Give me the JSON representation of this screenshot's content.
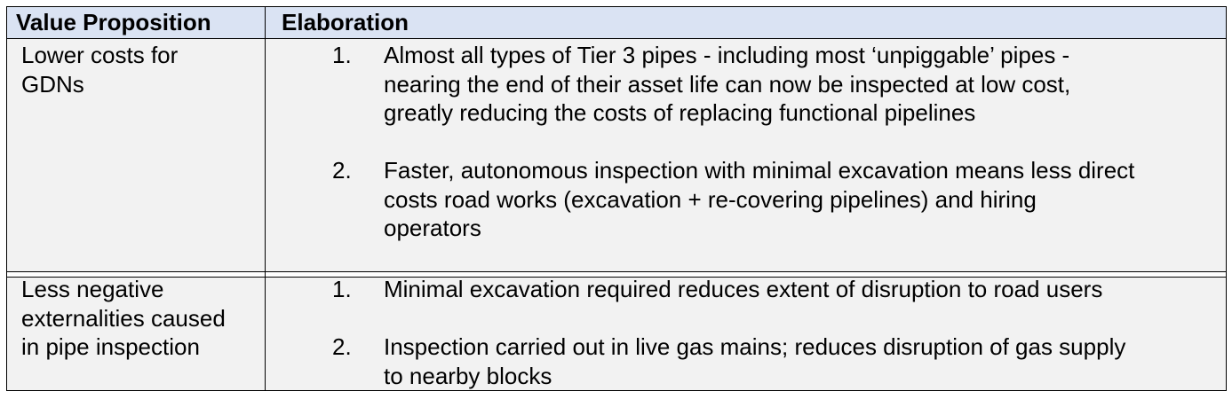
{
  "header": {
    "col1": "Value Proposition",
    "col2": "Elaboration"
  },
  "rows": [
    {
      "value_proposition": [
        "Lower costs for",
        "GDNs"
      ],
      "items": [
        {
          "number": "1.",
          "lines": [
            "Almost all types of Tier 3 pipes - including most ‘unpiggable’ pipes -",
            "nearing the end of their asset life can now be inspected at low cost,",
            "greatly reducing the costs of replacing functional pipelines"
          ]
        },
        {
          "number": "2.",
          "lines": [
            "Faster, autonomous inspection with minimal excavation means less direct",
            "costs road works (excavation + re-covering pipelines) and hiring",
            "operators"
          ]
        }
      ]
    },
    {
      "value_proposition": [
        "Less negative",
        "externalities caused",
        "in pipe inspection"
      ],
      "items": [
        {
          "number": "1.",
          "lines": [
            "Minimal excavation required reduces extent of disruption to road users"
          ]
        },
        {
          "number": "2.",
          "lines": [
            "Inspection carried out in live gas mains; reduces disruption of gas supply",
            "to nearby blocks"
          ]
        }
      ]
    }
  ]
}
